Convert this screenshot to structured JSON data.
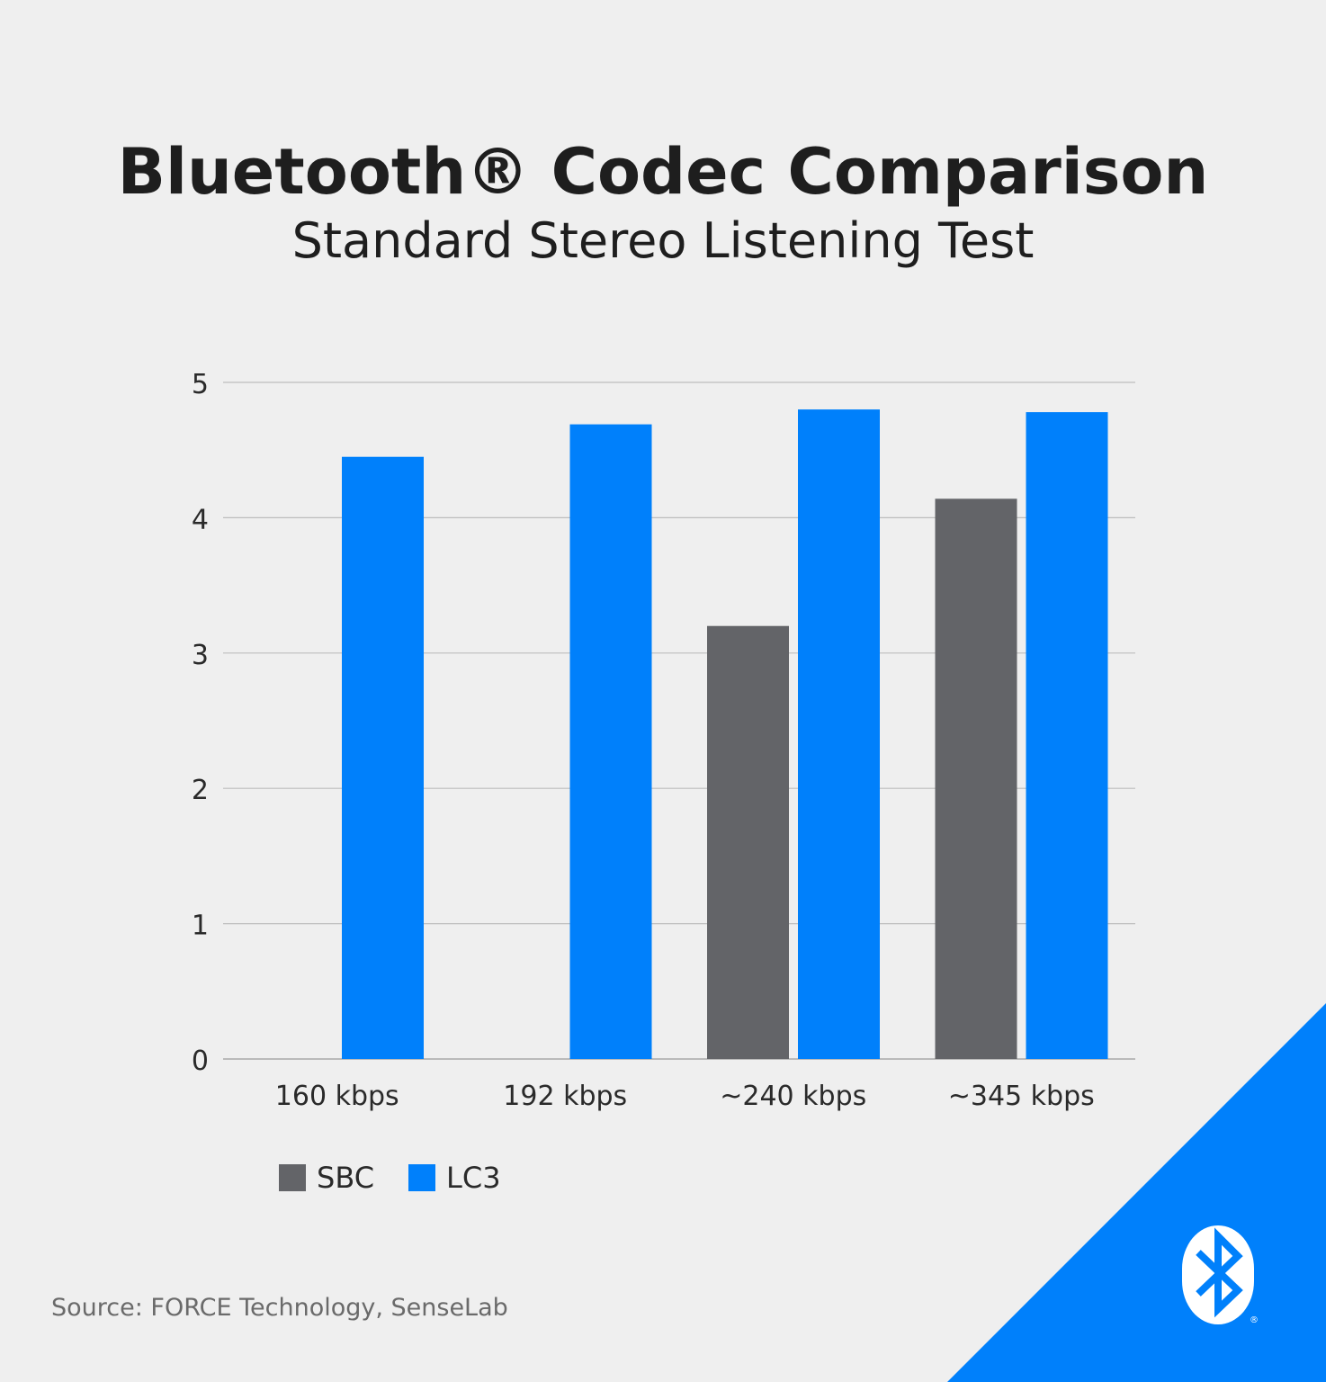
{
  "title": "Bluetooth® Codec Comparison",
  "subtitle": "Standard Stereo Listening Test",
  "source": "Source: FORCE Technology, SenseLab",
  "logo_text": "Bluetooth®",
  "colors": {
    "background": "#efefef",
    "SBC": "#636468",
    "LC3": "#0080fb",
    "grid": "#bdbdbd"
  },
  "chart_data": {
    "type": "bar",
    "title": "Bluetooth® Codec Comparison",
    "subtitle": "Standard Stereo Listening Test",
    "categories": [
      "160 kbps",
      "192 kbps",
      "~240 kbps",
      "~345 kbps"
    ],
    "series": [
      {
        "name": "SBC",
        "values": [
          null,
          null,
          3.2,
          4.14
        ]
      },
      {
        "name": "LC3",
        "values": [
          4.45,
          4.69,
          4.8,
          4.78
        ]
      }
    ],
    "ylim": [
      0,
      5
    ],
    "yticks": [
      "0",
      "1",
      "2",
      "3",
      "4",
      "5"
    ],
    "xlabel": "",
    "ylabel": "",
    "grid": true,
    "legend": "bottom-left"
  }
}
